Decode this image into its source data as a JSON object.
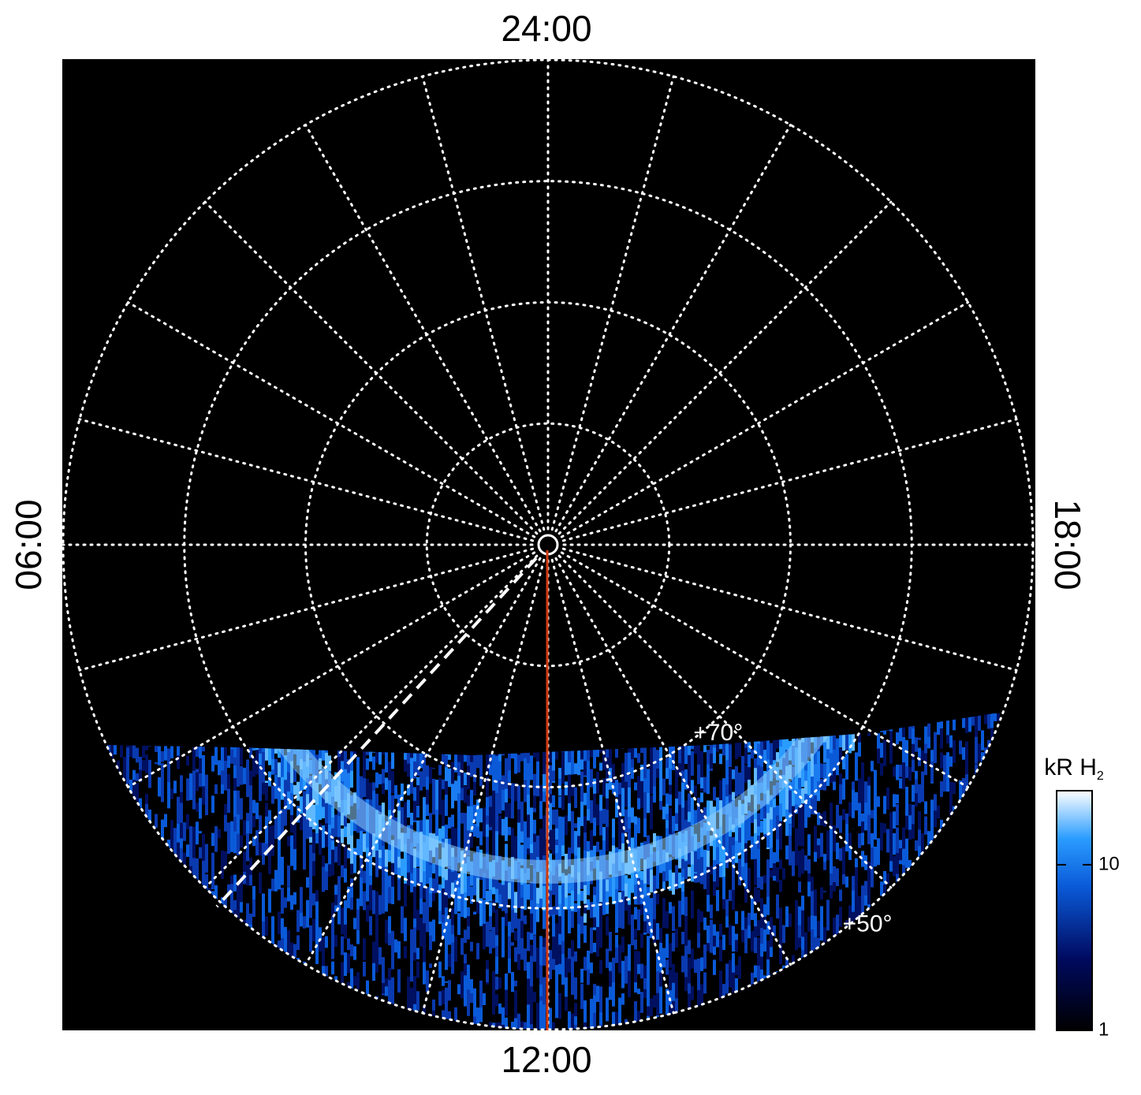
{
  "chart_data": {
    "type": "polar",
    "labels": {
      "top": "24:00",
      "left": "06:00",
      "right": "18:00",
      "bottom": "12:00"
    },
    "rlim": [
      90,
      50
    ],
    "rticks": [
      {
        "value": 70,
        "label": "+70°"
      },
      {
        "value": 50,
        "label": "+50°"
      }
    ],
    "colorbar": {
      "label": "kR H",
      "label_subscript": "2",
      "scale": "log",
      "lim": [
        1,
        28
      ],
      "ticks": [
        1,
        10
      ]
    }
  }
}
